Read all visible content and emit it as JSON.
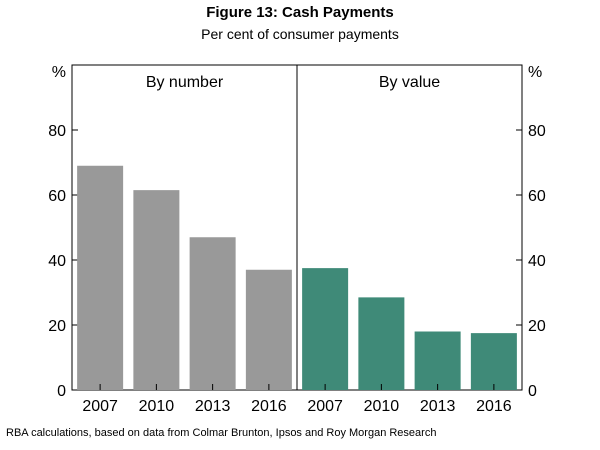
{
  "title": "Figure 13: Cash Payments",
  "subtitle": "Per cent of consumer payments",
  "source": "RBA calculations, based on data from Colmar Brunton, Ipsos and Roy Morgan Research",
  "y_unit": "%",
  "colors": {
    "by_number": "#999999",
    "by_value": "#3f8a78",
    "axis": "#000000"
  },
  "chart_data": {
    "type": "bar",
    "title": "Figure 13: Cash Payments",
    "subtitle": "Per cent of consumer payments",
    "ylabel": "%",
    "ylim": [
      0,
      100
    ],
    "yticks": [
      0,
      20,
      40,
      60,
      80
    ],
    "grid": false,
    "panels": [
      {
        "name": "By number",
        "categories": [
          "2007",
          "2010",
          "2013",
          "2016"
        ],
        "values": [
          69,
          61.5,
          47,
          37
        ]
      },
      {
        "name": "By value",
        "categories": [
          "2007",
          "2010",
          "2013",
          "2016"
        ],
        "values": [
          37.5,
          28.5,
          18,
          17.5
        ]
      }
    ]
  }
}
